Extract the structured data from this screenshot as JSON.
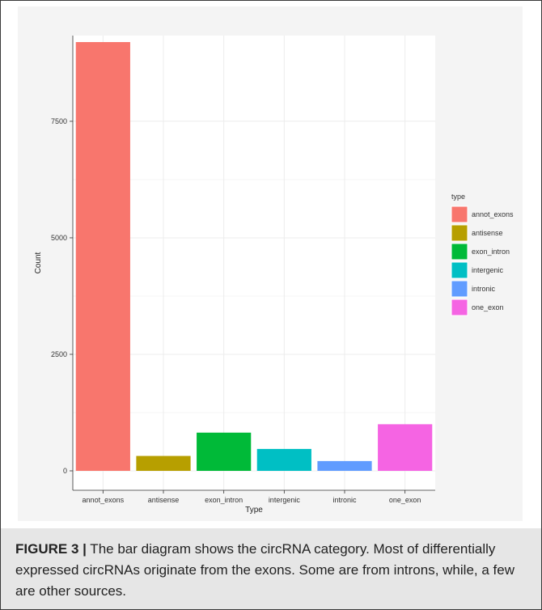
{
  "chart_data": {
    "type": "bar",
    "categories": [
      "annot_exons",
      "antisense",
      "exon_intron",
      "intergenic",
      "intronic",
      "one_exon"
    ],
    "values": [
      9200,
      320,
      820,
      470,
      210,
      1000
    ],
    "colors": [
      "#F8766D",
      "#B79F00",
      "#00BA38",
      "#00BFC4",
      "#619CFF",
      "#F564E3"
    ],
    "xlabel": "Type",
    "ylabel": "Count",
    "yticks": [
      0,
      2500,
      5000,
      7500
    ],
    "ylim": [
      0,
      9200
    ],
    "grid": true,
    "legend": {
      "title": "type",
      "placement": "right",
      "entries": [
        "annot_exons",
        "antisense",
        "exon_intron",
        "intergenic",
        "intronic",
        "one_exon"
      ]
    }
  },
  "caption": {
    "label": "FIGURE 3 |",
    "text": " The bar diagram shows the circRNA category. Most of differentially expressed circRNAs originate from the exons. Some are from introns, while, a few are other sources."
  }
}
